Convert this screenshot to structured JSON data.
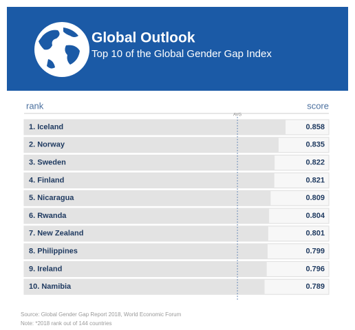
{
  "chart_data": {
    "type": "bar",
    "orientation": "horizontal",
    "title": "Global Outlook",
    "subtitle": "Top 10 of the Global Gender Gap Index",
    "category_axis_label": "rank",
    "value_axis_label": "score",
    "categories": [
      "1. Iceland",
      "2. Norway",
      "3. Sweden",
      "4. Finland",
      "5. Nicaragua",
      "6. Rwanda",
      "7. New Zealand",
      "8. Philippines",
      "9. Ireland",
      "10. Namibia"
    ],
    "values": [
      0.858,
      0.835,
      0.822,
      0.821,
      0.809,
      0.804,
      0.801,
      0.799,
      0.796,
      0.789
    ],
    "color": "#e3e3e3",
    "xlim": [
      0,
      1
    ],
    "average": {
      "label": "AVG",
      "value": 0.7
    },
    "header_color": "#1b5aa6",
    "source": "Source: Global Gender Gap Report 2018,  World Economic Forum",
    "note": "Note: *2018 rank out of 144 countries"
  }
}
